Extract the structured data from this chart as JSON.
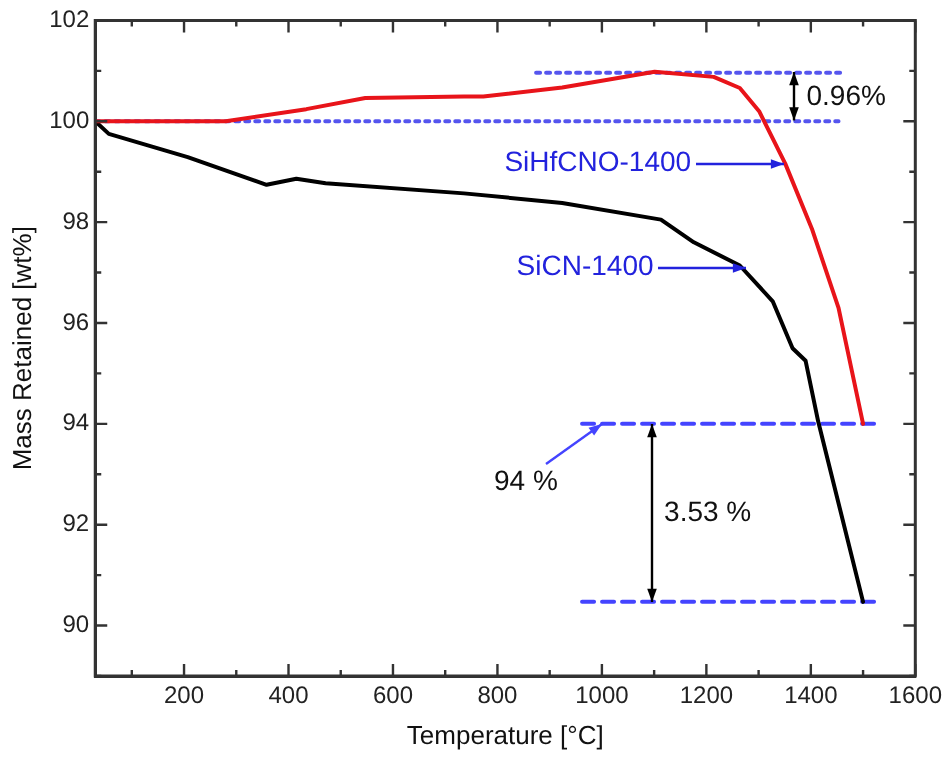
{
  "chart_data": {
    "type": "line",
    "xlabel": "Temperature [°C]",
    "ylabel": "Mass Retained [wt%]",
    "xlim": [
      30,
      1600
    ],
    "ylim": [
      89,
      102
    ],
    "xticks": [
      {
        "value": 100,
        "label": null
      },
      200,
      {
        "value": 300,
        "label": null
      },
      400,
      {
        "value": 500,
        "label": null
      },
      600,
      {
        "value": 700,
        "label": null
      },
      800,
      {
        "value": 900,
        "label": null
      },
      1000,
      {
        "value": 1100,
        "label": null
      },
      1200,
      {
        "value": 1300,
        "label": null
      },
      1400,
      {
        "value": 1500,
        "label": null
      },
      1600
    ],
    "yticks": [
      {
        "value": 89,
        "label": null
      },
      90,
      {
        "value": 91,
        "label": null
      },
      92,
      {
        "value": 93,
        "label": null
      },
      94,
      {
        "value": 95,
        "label": null
      },
      96,
      {
        "value": 97,
        "label": null
      },
      98,
      {
        "value": 99,
        "label": null
      },
      100,
      {
        "value": 101,
        "label": null
      },
      102
    ],
    "grid": false,
    "legend": false,
    "marker": "none",
    "line_style": "solid",
    "series": [
      {
        "color": "#e8141a",
        "x": [
          30,
          180,
          280,
          434,
          547,
          736,
          773,
          924,
          1101,
          1214,
          1264,
          1301,
          1351,
          1402,
          1453,
          1500
        ],
        "values": [
          100,
          100,
          100,
          100.24,
          100.46,
          100.49,
          100.49,
          100.67,
          100.98,
          100.88,
          100.66,
          100.2,
          99.16,
          97.87,
          96.3,
          94
        ]
      },
      {
        "color": "#000000",
        "x": [
          30,
          56,
          207,
          358,
          415,
          471,
          736,
          924,
          1113,
          1176,
          1264,
          1327,
          1365,
          1390,
          1414,
          1500
        ],
        "values": [
          100,
          99.75,
          99.29,
          98.74,
          98.86,
          98.77,
          98.57,
          98.38,
          98.05,
          97.6,
          97.14,
          96.43,
          95.5,
          95.25,
          94.05,
          90.47
        ]
      },
      {
        "color": "#5555ee",
        "line_style": "dotted",
        "x": [
          874,
          1464
        ],
        "values": [
          100.96,
          100.96
        ]
      },
      {
        "color": "#5555ee",
        "line_style": "dotted",
        "x": [
          30,
          1453
        ],
        "values": [
          100,
          100
        ]
      },
      {
        "color": "#4444ff",
        "line_style": "dashed",
        "x": [
          962,
          1536
        ],
        "values": [
          94,
          94
        ]
      },
      {
        "color": "#4444ff",
        "line_style": "dashed",
        "x": [
          962,
          1536
        ],
        "values": [
          90.47,
          90.47
        ]
      }
    ],
    "annotations": [
      "0.96%",
      {
        "text": "SiHfCNO-1400",
        "x": 1347,
        "y": 99.16
      },
      {
        "text": "SiCN-1400",
        "x": 1275,
        "y": 97.1
      },
      {
        "text": "94 %",
        "x": 1000,
        "y": 94
      },
      "3.53 %"
    ]
  }
}
